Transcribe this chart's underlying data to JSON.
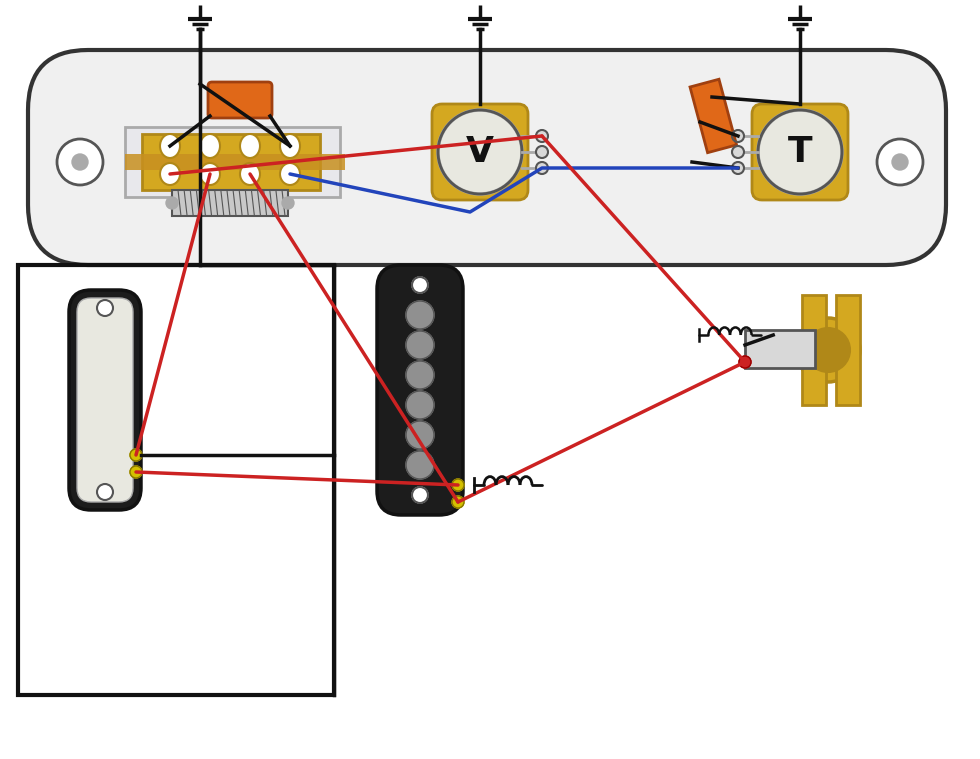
{
  "bg": "#ffffff",
  "plate_fill": "#f0f0f0",
  "plate_stroke": "#333333",
  "gold": "#d4a820",
  "gold_dark": "#b08818",
  "orange": "#e06818",
  "black": "#111111",
  "red": "#cc2222",
  "blue": "#2244bb",
  "yellow": "#d4c000",
  "gray_light": "#d8d8d8",
  "gray_med": "#aaaaaa",
  "gray_dark": "#555555",
  "white": "#ffffff",
  "cream": "#e8e8e0",
  "pickup_black": "#1c1c1c",
  "pole_gray": "#909090",
  "switch_white": "#e8e8ec",
  "spring_gray": "#c8c8c8"
}
